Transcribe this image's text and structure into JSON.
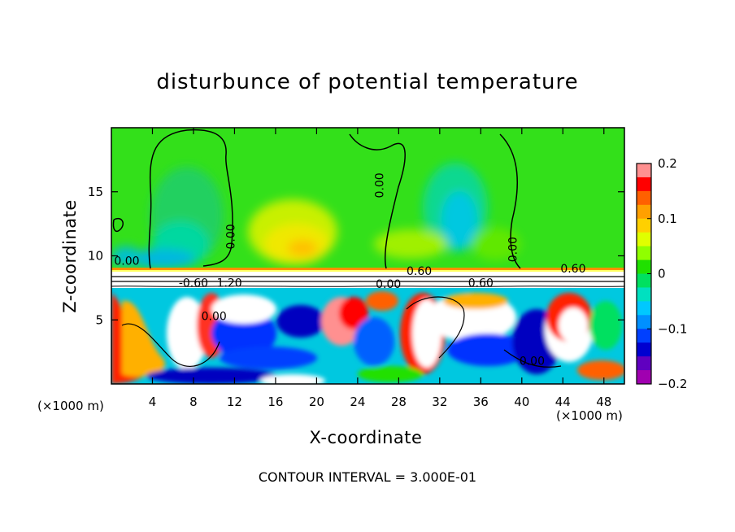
{
  "chart_data": {
    "type": "heatmap",
    "title": "disturbunce of potential temperature",
    "xlabel": "X-coordinate",
    "ylabel": "Z-coordinate",
    "x_unit_label": "(×1000 m)",
    "xlim": [
      0,
      50
    ],
    "ylim": [
      0,
      20
    ],
    "x_ticks": [
      4,
      8,
      12,
      16,
      20,
      24,
      28,
      32,
      36,
      40,
      44,
      48
    ],
    "y_ticks": [
      5,
      10,
      15
    ],
    "colorbar": {
      "range": [
        -0.2,
        0.2
      ],
      "tick_values": [
        0.2,
        0.1,
        0,
        -0.1,
        -0.2
      ],
      "tick_labels": [
        "0.2",
        "0.1",
        "0",
        "−0.1",
        "−0.2"
      ],
      "colors": [
        "#FF9090",
        "#FF0000",
        "#FF6000",
        "#FFA000",
        "#FFD000",
        "#E0FF00",
        "#90FF00",
        "#20E000",
        "#00E060",
        "#00E0C0",
        "#00C8FF",
        "#0090FF",
        "#0040FF",
        "#0000D0",
        "#6000C0",
        "#A000B0"
      ]
    },
    "contour_labels": [
      {
        "text": "0.00",
        "x": 1.5,
        "y": 9.3
      },
      {
        "text": "0.00",
        "x": 12,
        "y": 11.5
      },
      {
        "text": "0.00",
        "x": 26.5,
        "y": 15.5
      },
      {
        "text": "0.00",
        "x": 39.5,
        "y": 10.5
      },
      {
        "text": "0.60",
        "x": 30,
        "y": 8.5
      },
      {
        "text": "0.60",
        "x": 45,
        "y": 8.7
      },
      {
        "text": "0.60",
        "x": 36,
        "y": 7.6
      },
      {
        "text": "-0.60",
        "x": 8,
        "y": 7.6
      },
      {
        "text": "1.20",
        "x": 11.5,
        "y": 7.6
      },
      {
        "text": "0.00",
        "x": 10,
        "y": 5
      },
      {
        "text": "0.00",
        "x": 27,
        "y": 7.5
      },
      {
        "text": "0.00",
        "x": 41,
        "y": 1.5
      }
    ],
    "contour_interval_label": "CONTOUR INTERVAL = 3.000E-01"
  },
  "colors": {
    "background_field": "#33E01A",
    "inversion_layer": "#FFFFFF"
  }
}
